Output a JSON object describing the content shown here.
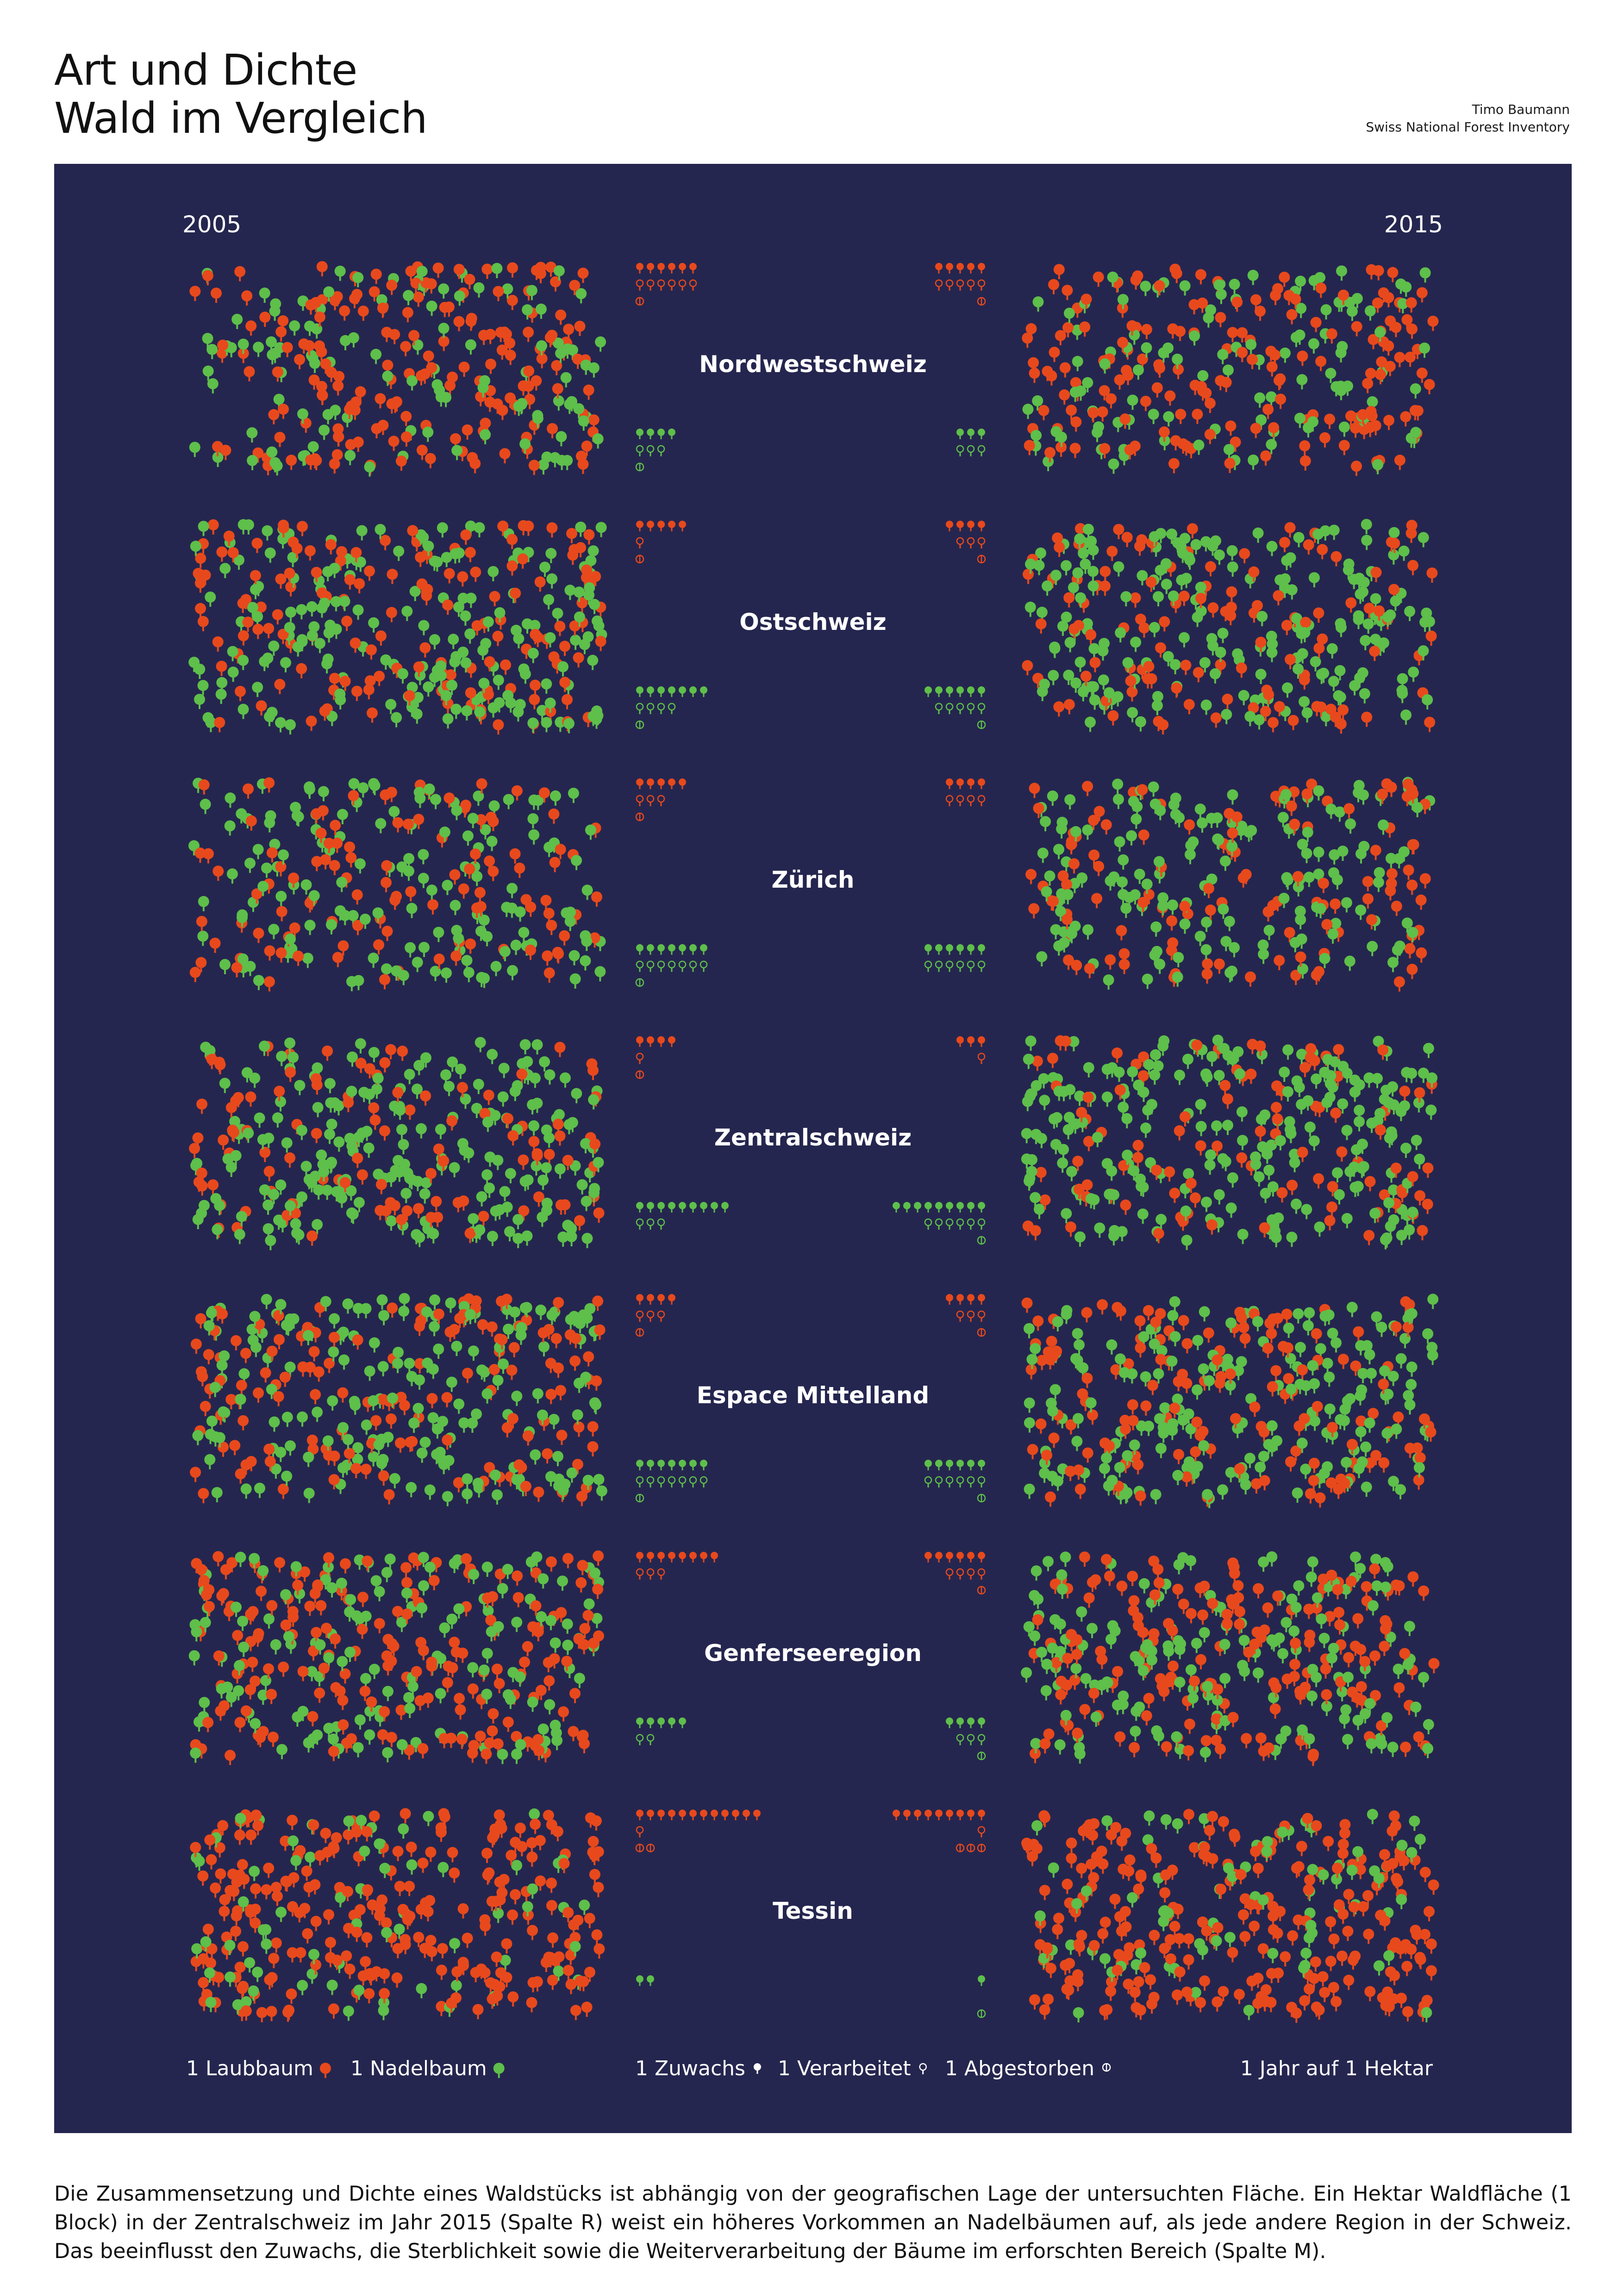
{
  "title": {
    "line1": "Art und Dichte",
    "line2": "Wald im Vergleich"
  },
  "credits": {
    "author": "Timo Baumann",
    "source": "Swiss National Forest Inventory"
  },
  "colors": {
    "panel": "#25264f",
    "laubbaum": "#e8491c",
    "nadelbaum": "#5ebf4a",
    "text": "#ffffff"
  },
  "legend": {
    "laubbaum": "1 Laubbaum",
    "nadelbaum": "1 Nadelbaum",
    "zuwachs": "1 Zuwachs",
    "verarbeitet": "1 Verarbeitet",
    "abgestorben": "1 Abgestorben",
    "unit": "1 Jahr auf 1 Hektar"
  },
  "chart_data": {
    "type": "unit-pictogram",
    "year_left": "2005",
    "year_right": "2015",
    "units": "trees per hectare per year",
    "regions": [
      {
        "name": "Nordwestschweiz",
        "2005": {
          "laub": 185,
          "nadel": 115
        },
        "2015": {
          "laub": 175,
          "nadel": 115
        },
        "left": {
          "laub": {
            "zuwachs": 6,
            "verarbeitet": 6,
            "abgestorben": 1
          },
          "nadel": {
            "zuwachs": 4,
            "verarbeitet": 3,
            "abgestorben": 1
          }
        },
        "right": {
          "laub": {
            "zuwachs": 5,
            "verarbeitet": 5,
            "abgestorben": 1
          },
          "nadel": {
            "zuwachs": 3,
            "verarbeitet": 3,
            "abgestorben": 0
          }
        }
      },
      {
        "name": "Ostschweiz",
        "2005": {
          "laub": 150,
          "nadel": 200
        },
        "2015": {
          "laub": 120,
          "nadel": 200
        },
        "left": {
          "laub": {
            "zuwachs": 5,
            "verarbeitet": 1,
            "abgestorben": 1
          },
          "nadel": {
            "zuwachs": 7,
            "verarbeitet": 4,
            "abgestorben": 1
          }
        },
        "right": {
          "laub": {
            "zuwachs": 4,
            "verarbeitet": 3,
            "abgestorben": 1
          },
          "nadel": {
            "zuwachs": 6,
            "verarbeitet": 5,
            "abgestorben": 1
          }
        }
      },
      {
        "name": "Zürich",
        "2005": {
          "laub": 110,
          "nadel": 150
        },
        "2015": {
          "laub": 120,
          "nadel": 165
        },
        "left": {
          "laub": {
            "zuwachs": 5,
            "verarbeitet": 3,
            "abgestorben": 1
          },
          "nadel": {
            "zuwachs": 7,
            "verarbeitet": 7,
            "abgestorben": 1
          }
        },
        "right": {
          "laub": {
            "zuwachs": 4,
            "verarbeitet": 4,
            "abgestorben": 0
          },
          "nadel": {
            "zuwachs": 6,
            "verarbeitet": 6,
            "abgestorben": 0
          }
        }
      },
      {
        "name": "Zentralschweiz",
        "2005": {
          "laub": 110,
          "nadel": 220
        },
        "2015": {
          "laub": 100,
          "nadel": 230
        },
        "left": {
          "laub": {
            "zuwachs": 4,
            "verarbeitet": 1,
            "abgestorben": 1
          },
          "nadel": {
            "zuwachs": 9,
            "verarbeitet": 3,
            "abgestorben": 0
          }
        },
        "right": {
          "laub": {
            "zuwachs": 3,
            "verarbeitet": 1,
            "abgestorben": 0
          },
          "nadel": {
            "zuwachs": 9,
            "verarbeitet": 6,
            "abgestorben": 1
          }
        }
      },
      {
        "name": "Espace Mittelland",
        "2005": {
          "laub": 150,
          "nadel": 190
        },
        "2015": {
          "laub": 150,
          "nadel": 200
        },
        "left": {
          "laub": {
            "zuwachs": 4,
            "verarbeitet": 3,
            "abgestorben": 1
          },
          "nadel": {
            "zuwachs": 7,
            "verarbeitet": 7,
            "abgestorben": 1
          }
        },
        "right": {
          "laub": {
            "zuwachs": 4,
            "verarbeitet": 3,
            "abgestorben": 1
          },
          "nadel": {
            "zuwachs": 6,
            "verarbeitet": 6,
            "abgestorben": 1
          }
        }
      },
      {
        "name": "Genferseeregion",
        "2005": {
          "laub": 200,
          "nadel": 150
        },
        "2015": {
          "laub": 180,
          "nadel": 165
        },
        "left": {
          "laub": {
            "zuwachs": 8,
            "verarbeitet": 3,
            "abgestorben": 0
          },
          "nadel": {
            "zuwachs": 5,
            "verarbeitet": 2,
            "abgestorben": 0
          }
        },
        "right": {
          "laub": {
            "zuwachs": 6,
            "verarbeitet": 4,
            "abgestorben": 1
          },
          "nadel": {
            "zuwachs": 4,
            "verarbeitet": 3,
            "abgestorben": 1
          }
        }
      },
      {
        "name": "Tessin",
        "2005": {
          "laub": 260,
          "nadel": 70
        },
        "2015": {
          "laub": 260,
          "nadel": 80
        },
        "left": {
          "laub": {
            "zuwachs": 12,
            "verarbeitet": 1,
            "abgestorben": 2
          },
          "nadel": {
            "zuwachs": 2,
            "verarbeitet": 0,
            "abgestorben": 0
          }
        },
        "right": {
          "laub": {
            "zuwachs": 9,
            "verarbeitet": 1,
            "abgestorben": 3
          },
          "nadel": {
            "zuwachs": 1,
            "verarbeitet": 0,
            "abgestorben": 1
          }
        }
      }
    ]
  },
  "caption": "Die Zusammensetzung und Dichte eines Waldstücks ist abhängig von der geografischen Lage der untersuchten Fläche. Ein Hektar Waldfläche (1 Block) in der Zentralschweiz im Jahr 2015 (Spalte R) weist ein höheres Vorkommen an Nadelbäumen auf, als jede andere Region in der Schweiz. Das beeinflusst den Zuwachs, die Sterblichkeit sowie die Weiterverarbeitung der Bäume im erforschten Bereich (Spalte M)."
}
